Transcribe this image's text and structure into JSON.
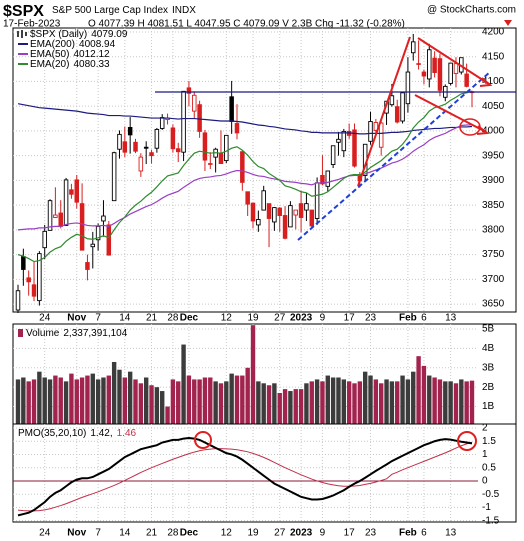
{
  "header": {
    "symbol": "$SPX",
    "name": "S&P 500 Large Cap Index",
    "exchange": "INDX",
    "watermark": "@ StockCharts.com",
    "date": "17-Feb-2023",
    "quote": "O 4077.39 H 4081.51 L 4047.95 C 4079.09 V 2.3B Chg -11.32 (-0.28%)"
  },
  "chart_data": [
    {
      "type": "candlestick",
      "name": "$SPX (Daily)",
      "categories": [
        null,
        null,
        null,
        null,
        null,
        "24",
        null,
        null,
        null,
        null,
        null,
        "Nov",
        null,
        null,
        null,
        "7",
        null,
        null,
        null,
        null,
        "14",
        null,
        null,
        null,
        null,
        "21",
        null,
        null,
        null,
        "28",
        null,
        null,
        "Dec",
        null,
        null,
        null,
        null,
        null,
        null,
        "12",
        null,
        null,
        null,
        null,
        "19",
        null,
        null,
        null,
        null,
        "27",
        null,
        null,
        null,
        "2023",
        null,
        null,
        null,
        "9",
        null,
        null,
        null,
        null,
        "17",
        null,
        null,
        null,
        "23",
        null,
        null,
        null,
        null,
        null,
        null,
        "Feb",
        null,
        null,
        "6",
        null,
        null,
        null,
        null,
        "13",
        null,
        null,
        null,
        null
      ],
      "ohlc": [
        [
          3638,
          3689,
          3632,
          3677
        ],
        [
          3746,
          3762,
          3687,
          3720
        ],
        [
          3703,
          3718,
          3667,
          3695
        ],
        [
          3689,
          3737,
          3656,
          3666
        ],
        [
          3657,
          3757,
          3647,
          3752
        ],
        [
          3764,
          3810,
          3741,
          3797
        ],
        [
          3799,
          3862,
          3799,
          3859
        ],
        [
          3825,
          3886,
          3824,
          3830
        ],
        [
          3834,
          3860,
          3803,
          3807
        ],
        [
          3809,
          3905,
          3808,
          3901
        ],
        [
          3881,
          3893,
          3863,
          3872
        ],
        [
          3901,
          3911,
          3843,
          3856
        ],
        [
          3853,
          3894,
          3758,
          3759
        ],
        [
          3734,
          3750,
          3698,
          3720
        ],
        [
          3766,
          3796,
          3722,
          3771
        ],
        [
          3780,
          3813,
          3758,
          3807
        ],
        [
          3818,
          3860,
          3786,
          3828
        ],
        [
          3810,
          3818,
          3748,
          3749
        ],
        [
          3859,
          3958,
          3859,
          3956
        ],
        [
          3963,
          4001,
          3944,
          3993
        ],
        [
          3978,
          4009,
          3947,
          3957
        ],
        [
          4007,
          4028,
          3954,
          3992
        ],
        [
          3977,
          3984,
          3955,
          3959
        ],
        [
          3919,
          3955,
          3907,
          3947
        ],
        [
          3967,
          3979,
          3933,
          3965
        ],
        [
          3956,
          3962,
          3934,
          3950
        ],
        [
          3965,
          4006,
          3956,
          4003
        ],
        [
          4005,
          4034,
          4002,
          4027
        ],
        [
          4023,
          4035,
          4013,
          4026
        ],
        [
          4006,
          4013,
          3956,
          3964
        ],
        [
          3964,
          3976,
          3937,
          3958
        ],
        [
          3957,
          4080,
          3939,
          4080
        ],
        [
          4087,
          4101,
          4050,
          4076
        ],
        [
          4040,
          4080,
          4026,
          4072
        ],
        [
          4053,
          4061,
          3986,
          3999
        ],
        [
          3996,
          4002,
          3919,
          3941
        ],
        [
          3934,
          3957,
          3923,
          3933
        ],
        [
          3947,
          3966,
          3916,
          3963
        ],
        [
          3955,
          4001,
          3934,
          3934
        ],
        [
          3940,
          3991,
          3935,
          3991
        ],
        [
          4069,
          4101,
          3994,
          4019
        ],
        [
          4015,
          4054,
          3983,
          3996
        ],
        [
          3958,
          3959,
          3879,
          3896
        ],
        [
          3877,
          3877,
          3828,
          3852
        ],
        [
          3854,
          3855,
          3803,
          3818
        ],
        [
          3810,
          3839,
          3796,
          3821
        ],
        [
          3840,
          3889,
          3839,
          3879
        ],
        [
          3853,
          3853,
          3765,
          3823
        ],
        [
          3816,
          3846,
          3798,
          3845
        ],
        [
          3844,
          3846,
          3796,
          3829
        ],
        [
          3829,
          3848,
          3781,
          3783
        ],
        [
          3806,
          3858,
          3806,
          3849
        ],
        [
          3830,
          3840,
          3801,
          3840
        ],
        [
          3853,
          3879,
          3795,
          3825
        ],
        [
          3840,
          3874,
          3818,
          3853
        ],
        [
          3840,
          3840,
          3802,
          3808
        ],
        [
          3823,
          3906,
          3810,
          3895
        ],
        [
          3910,
          3951,
          3890,
          3893
        ],
        [
          3888,
          3920,
          3877,
          3919
        ],
        [
          3932,
          3970,
          3925,
          3970
        ],
        [
          3977,
          3998,
          3950,
          3983
        ],
        [
          3960,
          4004,
          3947,
          3999
        ],
        [
          3999,
          4015,
          3984,
          3991
        ],
        [
          4002,
          4015,
          3926,
          3929
        ],
        [
          3912,
          3917,
          3886,
          3899
        ],
        [
          3910,
          3973,
          3898,
          3973
        ],
        [
          3979,
          4039,
          3972,
          4019
        ],
        [
          4001,
          4024,
          3990,
          4017
        ],
        [
          3967,
          4020,
          3950,
          4016
        ],
        [
          4036,
          4060,
          4012,
          4060
        ],
        [
          4053,
          4095,
          4049,
          4071
        ],
        [
          4049,
          4063,
          4015,
          4018
        ],
        [
          4020,
          4077,
          4015,
          4077
        ],
        [
          4055,
          4149,
          4037,
          4119
        ],
        [
          4158,
          4196,
          4142,
          4180
        ],
        [
          4136,
          4183,
          4124,
          4136
        ],
        [
          4119,
          4124,
          4094,
          4111
        ],
        [
          4105,
          4176,
          4088,
          4164
        ],
        [
          4147,
          4161,
          4108,
          4118
        ],
        [
          4146,
          4156,
          4070,
          4082
        ],
        [
          4068,
          4094,
          4060,
          4090
        ],
        [
          4096,
          4138,
          4092,
          4137
        ],
        [
          4116,
          4149,
          4088,
          4136
        ],
        [
          4119,
          4148,
          4114,
          4148
        ],
        [
          4115,
          4136,
          4088,
          4090
        ],
        [
          4077.39,
          4081.51,
          4047.95,
          4079.09
        ]
      ],
      "up_color": "#000000",
      "down_color": "#d81e1e",
      "series": [
        {
          "name": "EMA(200)",
          "color": "#1b1b80",
          "values": [
            4055,
            4053,
            4051,
            4049,
            4047,
            4046,
            4045,
            4044,
            4043,
            4042,
            4041,
            4040,
            4038,
            4036,
            4035,
            4034,
            4033,
            4031,
            4031,
            4031,
            4030,
            4030,
            4029,
            4028,
            4027,
            4026,
            4026,
            4026,
            4026,
            4025,
            4024,
            4025,
            4025,
            4025,
            4024,
            4023,
            4022,
            4021,
            4020,
            4020,
            4020,
            4019,
            4018,
            4016,
            4014,
            4012,
            4011,
            4009,
            4008,
            4006,
            4004,
            4003,
            4002,
            4000,
            3999,
            3997,
            3997,
            3996,
            3996,
            3996,
            3996,
            3996,
            3996,
            3995,
            3994,
            3994,
            3995,
            3995,
            3995,
            3996,
            3997,
            3997,
            3998,
            3999,
            4001,
            4002,
            4003,
            4004,
            4005,
            4005,
            4006,
            4007,
            4007,
            4008,
            4008,
            4008.94
          ]
        },
        {
          "name": "EMA(50)",
          "color": "#9a3fc4",
          "values": [
            3800,
            3801,
            3802,
            3802,
            3804,
            3804,
            3806,
            3807,
            3807,
            3811,
            3813,
            3814,
            3812,
            3809,
            3808,
            3808,
            3809,
            3807,
            3813,
            3820,
            3825,
            3832,
            3837,
            3842,
            3847,
            3851,
            3857,
            3864,
            3870,
            3874,
            3878,
            3886,
            3893,
            3900,
            3904,
            3906,
            3907,
            3909,
            3910,
            3913,
            3917,
            3920,
            3919,
            3916,
            3912,
            3909,
            3908,
            3905,
            3903,
            3901,
            3898,
            3897,
            3896,
            3894,
            3893,
            3891,
            3895,
            3895,
            3896,
            3899,
            3902,
            3906,
            3909,
            3910,
            3910,
            3913,
            3917,
            3921,
            3925,
            3930,
            3935,
            3938,
            3943,
            3950,
            3959,
            3966,
            3972,
            3981,
            3987,
            3991,
            3995,
            4001,
            4006,
            4011,
            4012,
            4012.12
          ]
        },
        {
          "name": "EMA(20)",
          "color": "#2e8b2e",
          "values": [
            3750,
            3747,
            3742,
            3736,
            3738,
            3744,
            3755,
            3762,
            3766,
            3777,
            3785,
            3791,
            3788,
            3782,
            3781,
            3784,
            3788,
            3784,
            3800,
            3815,
            3826,
            3840,
            3850,
            3858,
            3868,
            3876,
            3887,
            3899,
            3909,
            3912,
            3915,
            3930,
            3943,
            3955,
            3959,
            3957,
            3955,
            3956,
            3955,
            3959,
            3965,
            3968,
            3961,
            3951,
            3938,
            3928,
            3924,
            3914,
            3907,
            3900,
            3889,
            3886,
            3882,
            3877,
            3875,
            3868,
            3870,
            3872,
            3877,
            3886,
            3895,
            3904,
            3910,
            3912,
            3911,
            3917,
            3926,
            3933,
            3940,
            3950,
            3959,
            3963,
            3973,
            3987,
            4006,
            4018,
            4027,
            4040,
            4047,
            4050,
            4054,
            4062,
            4068,
            4075,
            4077,
            4080.33
          ]
        }
      ],
      "ylim": [
        3634,
        4208
      ],
      "yticks": [
        3650,
        3700,
        3750,
        3800,
        3850,
        3900,
        3950,
        4000,
        4050,
        4100,
        4150,
        4200
      ],
      "grid": true
    },
    {
      "type": "bar",
      "name": "Volume",
      "last_label": "2,337,391,104",
      "up_color": "#3c3c3c",
      "down_color": "#a2234e",
      "values": [
        2.4,
        2.5,
        2.3,
        2.4,
        2.8,
        2.5,
        2.4,
        2.6,
        2.5,
        2.3,
        2.7,
        2.4,
        2.5,
        2.6,
        2.7,
        2.4,
        2.5,
        2.6,
        3.3,
        2.9,
        2.5,
        2.8,
        2.4,
        2.2,
        2.5,
        2.1,
        2.0,
        1.8,
        1.0,
        2.4,
        2.3,
        4.2,
        2.6,
        2.4,
        2.4,
        2.5,
        2.5,
        2.3,
        2.2,
        2.3,
        2.7,
        2.6,
        2.6,
        3.0,
        5.2,
        2.3,
        2.2,
        2.1,
        2.2,
        1.7,
        1.9,
        1.8,
        1.9,
        1.9,
        2.2,
        2.3,
        2.4,
        2.3,
        2.6,
        2.5,
        2.5,
        2.4,
        2.3,
        2.2,
        2.3,
        2.8,
        2.6,
        2.4,
        2.2,
        2.4,
        2.3,
        2.3,
        2.6,
        2.4,
        2.8,
        3.6,
        3.1,
        2.6,
        2.5,
        2.4,
        2.3,
        2.3,
        2.2,
        2.4,
        2.3,
        2.337391104
      ],
      "ylim": [
        0.1,
        5.26
      ],
      "yticks": [
        {
          "value": 1,
          "label": "1B"
        },
        {
          "value": 2,
          "label": "2B"
        },
        {
          "value": 3,
          "label": "3B"
        },
        {
          "value": 4,
          "label": "4B"
        },
        {
          "value": 5,
          "label": "5B"
        }
      ],
      "grid": true
    },
    {
      "type": "line",
      "zero_color": "#8b1a3a",
      "separator": ",",
      "series": [
        {
          "name": "PMO(35,20,10)",
          "color": "#000000",
          "values": [
            -1.3,
            -1.25,
            -1.2,
            -1.1,
            -0.95,
            -0.8,
            -0.6,
            -0.45,
            -0.35,
            -0.2,
            -0.05,
            0.05,
            0.1,
            0.1,
            0.15,
            0.25,
            0.35,
            0.45,
            0.6,
            0.75,
            0.9,
            1.0,
            1.1,
            1.2,
            1.25,
            1.3,
            1.35,
            1.45,
            1.5,
            1.55,
            1.55,
            1.6,
            1.62,
            1.6,
            1.55,
            1.45,
            1.35,
            1.25,
            1.15,
            1.05,
            1.0,
            0.92,
            0.8,
            0.65,
            0.5,
            0.35,
            0.2,
            0.05,
            -0.1,
            -0.2,
            -0.3,
            -0.4,
            -0.5,
            -0.6,
            -0.65,
            -0.7,
            -0.7,
            -0.68,
            -0.62,
            -0.55,
            -0.45,
            -0.35,
            -0.22,
            -0.1,
            0.0,
            0.12,
            0.25,
            0.38,
            0.5,
            0.62,
            0.75,
            0.85,
            0.95,
            1.05,
            1.15,
            1.25,
            1.35,
            1.42,
            1.5,
            1.55,
            1.58,
            1.56,
            1.52,
            1.48,
            1.45,
            1.42
          ]
        },
        {
          "color": "#c0304a",
          "values": [
            -1.1,
            -1.12,
            -1.13,
            -1.13,
            -1.12,
            -1.09,
            -1.05,
            -0.99,
            -0.93,
            -0.86,
            -0.78,
            -0.7,
            -0.62,
            -0.55,
            -0.48,
            -0.41,
            -0.33,
            -0.25,
            -0.17,
            -0.08,
            0.02,
            0.12,
            0.22,
            0.32,
            0.41,
            0.5,
            0.58,
            0.66,
            0.74,
            0.82,
            0.89,
            0.96,
            1.03,
            1.09,
            1.14,
            1.18,
            1.2,
            1.22,
            1.22,
            1.21,
            1.2,
            1.18,
            1.14,
            1.1,
            1.04,
            0.97,
            0.89,
            0.8,
            0.7,
            0.6,
            0.5,
            0.41,
            0.32,
            0.23,
            0.15,
            0.07,
            0.0,
            -0.06,
            -0.11,
            -0.15,
            -0.18,
            -0.2,
            -0.2,
            -0.19,
            -0.17,
            -0.13,
            -0.09,
            -0.04,
            0.02,
            0.08,
            0.25,
            0.33,
            0.42,
            0.5,
            0.58,
            0.66,
            0.74,
            0.82,
            0.9,
            0.98,
            1.06,
            1.15,
            1.24,
            1.33,
            1.4,
            1.46
          ]
        }
      ],
      "ylim": [
        -1.55,
        2.15
      ],
      "yticks": [
        -1.5,
        -1,
        -0.5,
        0,
        0.5,
        1,
        1.5,
        2
      ],
      "grid": true
    }
  ]
}
